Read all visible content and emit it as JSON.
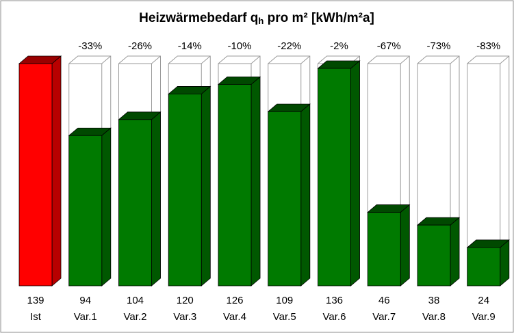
{
  "chart_data": {
    "type": "bar3d",
    "title": {
      "main": "Heizwärmebedarf q",
      "subscript": "h",
      "rest": " pro m²  [kWh/m²a]"
    },
    "categories": [
      "Ist",
      "Var.1",
      "Var.2",
      "Var.3",
      "Var.4",
      "Var.5",
      "Var.6",
      "Var.7",
      "Var.8",
      "Var.9"
    ],
    "values": [
      139,
      94,
      104,
      120,
      126,
      109,
      136,
      46,
      38,
      24
    ],
    "change_labels": [
      null,
      "-33%",
      "-26%",
      "-14%",
      "-10%",
      "-22%",
      "-2%",
      "-67%",
      "-73%",
      "-83%"
    ],
    "colors": [
      "#ff0000",
      "#007a00",
      "#007a00",
      "#007a00",
      "#007a00",
      "#007a00",
      "#007a00",
      "#007a00",
      "#007a00",
      "#007a00"
    ]
  }
}
